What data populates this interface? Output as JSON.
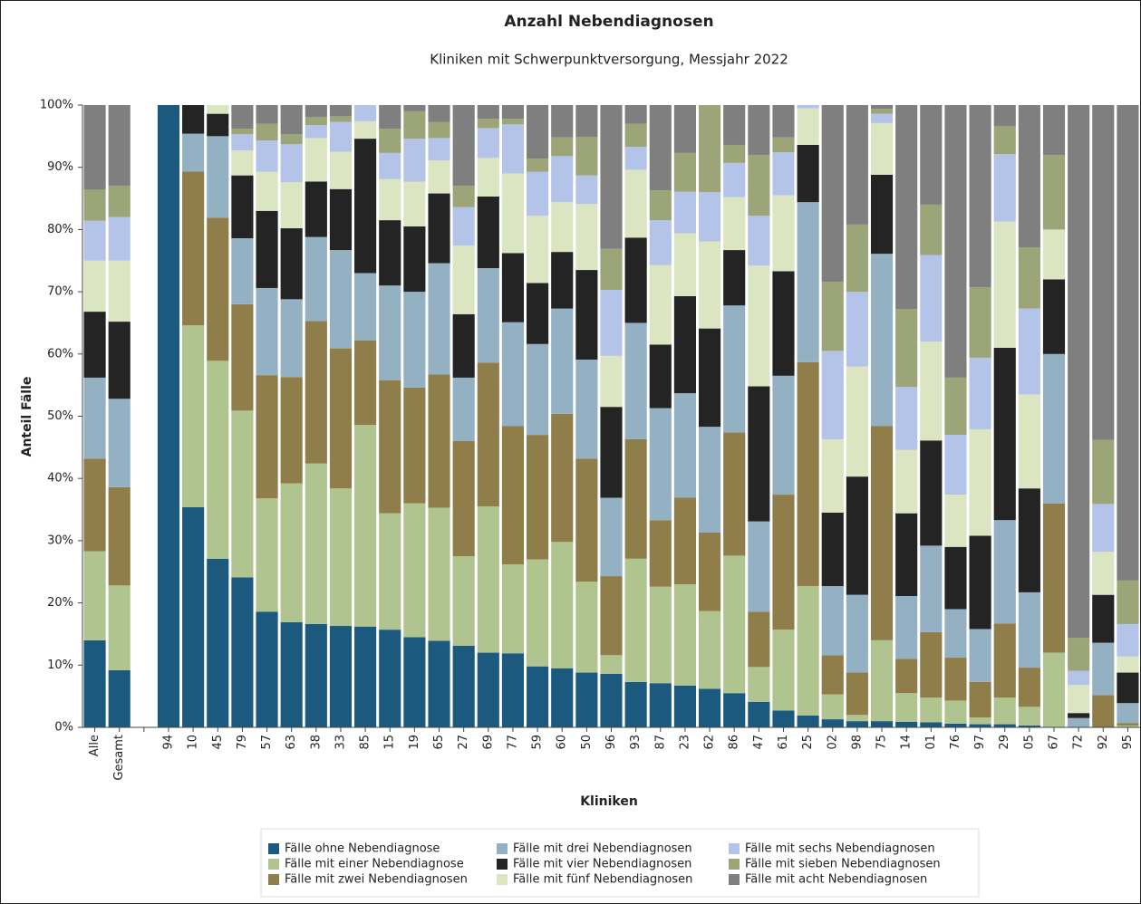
{
  "chart_data": {
    "type": "stacked_bar",
    "title": "Anzahl Nebendiagnosen",
    "subtitle": "Kliniken mit Schwerpunktversorgung, Messjahr 2022",
    "y_label": "Anteil Fälle",
    "x_label": "Kliniken",
    "categories": [
      "Alle",
      "Gesamt",
      null,
      "94",
      "10",
      "45",
      "79",
      "57",
      "63",
      "38",
      "33",
      "85",
      "15",
      "19",
      "65",
      "27",
      "69",
      "77",
      "59",
      "60",
      "50",
      "96",
      "93",
      "87",
      "23",
      "62",
      "86",
      "47",
      "61",
      "25",
      "02",
      "98",
      "75",
      "14",
      "01",
      "76",
      "97",
      "29",
      "05",
      "67",
      "72",
      "92",
      "95"
    ],
    "series": [
      {
        "name": "Fälle ohne Nebendiagnose",
        "color": "#1b5a7e",
        "values": [
          14,
          9.2,
          null,
          100,
          35.4,
          27.1,
          24.1,
          18.6,
          16.9,
          16.6,
          16.3,
          16.2,
          15.7,
          14.5,
          13.9,
          13.1,
          12,
          11.9,
          9.8,
          9.5,
          8.8,
          8.6,
          7.3,
          7.1,
          6.7,
          6.2,
          5.5,
          4.1,
          2.7,
          1.9,
          1.3,
          1,
          1,
          0.9,
          0.8,
          0.6,
          0.5,
          0.5,
          0.3,
          0,
          0,
          0,
          0
        ]
      },
      {
        "name": "Fälle mit einer Nebendiagnose",
        "color": "#b0c48f",
        "values": [
          14.3,
          13.6,
          null,
          0,
          29.2,
          31.8,
          26.8,
          18.2,
          22.3,
          25.8,
          22.1,
          32.4,
          18.7,
          21.5,
          21.4,
          14.4,
          23.5,
          14.3,
          17.2,
          20.3,
          14.6,
          3,
          19.8,
          15.5,
          16.3,
          12.5,
          22.1,
          5.6,
          13,
          20.8,
          4,
          1,
          13,
          4.6,
          4,
          3.7,
          1.1,
          4.3,
          3,
          12,
          0,
          0,
          0.3
        ]
      },
      {
        "name": "Fälle mit zwei Nebendiagnosen",
        "color": "#8f7e49",
        "values": [
          14.9,
          15.8,
          null,
          0,
          24.7,
          23,
          17.1,
          19.8,
          17.1,
          22.9,
          22.5,
          13.6,
          21.4,
          18.6,
          21.4,
          18.5,
          23.1,
          22.2,
          20,
          20.6,
          19.8,
          12.7,
          19.2,
          10.7,
          13.9,
          12.6,
          19.8,
          8.9,
          21.7,
          36,
          6.3,
          6.8,
          34.4,
          5.5,
          10.5,
          6.9,
          5.7,
          11.9,
          6.3,
          24,
          0,
          5.2,
          0.4
        ]
      },
      {
        "name": "Fälle mit drei Nebendiagnosen",
        "color": "#94b1c4",
        "values": [
          13,
          14.2,
          null,
          0,
          6.1,
          13.1,
          10.6,
          14,
          12.5,
          13.5,
          15.8,
          10.8,
          15.2,
          15.4,
          17.9,
          10.2,
          15.2,
          16.7,
          14.6,
          16.9,
          15.9,
          12.6,
          18.7,
          18,
          16.8,
          17,
          20.4,
          14.5,
          19.1,
          25.7,
          11.1,
          12.5,
          27.7,
          10.1,
          13.9,
          7.8,
          8.5,
          16.6,
          12.1,
          24,
          1.5,
          8.4,
          3.2
        ]
      },
      {
        "name": "Fälle mit vier Nebendiagnosen",
        "color": "#242424",
        "values": [
          10.6,
          12.4,
          null,
          0,
          4.6,
          3.6,
          10.1,
          12.4,
          11.4,
          8.9,
          9.8,
          21.6,
          10.5,
          10.5,
          11.2,
          10.2,
          11.5,
          11.1,
          9.8,
          9.1,
          14.4,
          14.6,
          13.7,
          10.2,
          15.6,
          15.8,
          8.9,
          21.7,
          16.8,
          9.2,
          11.8,
          19,
          12.7,
          13.3,
          16.9,
          10,
          15,
          27.7,
          16.7,
          12,
          0.8,
          7.7,
          4.9
        ]
      },
      {
        "name": "Fälle mit fünf Nebendiagnosen",
        "color": "#dbe5c1",
        "values": [
          8.2,
          9.8,
          null,
          0,
          0,
          1.4,
          4,
          6.3,
          7.4,
          7,
          6,
          2.8,
          6.6,
          7.2,
          5.3,
          11,
          6.2,
          12.8,
          10.8,
          8,
          10.6,
          8.2,
          10.9,
          12.8,
          10.1,
          14,
          8.5,
          19.4,
          12.2,
          5.9,
          11.8,
          17.7,
          8.3,
          10.2,
          15.9,
          8.4,
          17.1,
          20.3,
          15.1,
          8,
          4.5,
          6.9,
          2.6
        ]
      },
      {
        "name": "Fälle mit sechs Nebendiagnosen",
        "color": "#b4c3e8",
        "values": [
          6.4,
          7,
          null,
          0,
          0,
          0,
          2.6,
          5,
          6.1,
          2.1,
          4.8,
          2.6,
          4.2,
          6.9,
          3.6,
          6.2,
          4.8,
          7.9,
          7.1,
          7.4,
          4.6,
          10.6,
          3.7,
          7.2,
          6.7,
          7.9,
          5.5,
          8,
          6.9,
          0.5,
          14.2,
          12,
          1.5,
          10.1,
          13.9,
          9.6,
          11.5,
          10.8,
          13.8,
          0,
          2.3,
          7.7,
          5.2
        ]
      },
      {
        "name": "Fälle mit sieben Nebendiagnosen",
        "color": "#9ba577",
        "values": [
          5,
          5,
          null,
          0,
          0,
          0,
          0.9,
          2.7,
          1.6,
          1.3,
          0.9,
          0,
          3.9,
          4.4,
          2.6,
          3.4,
          1.5,
          0.9,
          2.1,
          3,
          6.2,
          6.6,
          3.7,
          4.8,
          6.2,
          14,
          2.9,
          9.8,
          2.4,
          0,
          11.1,
          10.8,
          0.8,
          12.5,
          8.1,
          9.2,
          11.3,
          4.5,
          9.8,
          12,
          5.3,
          10.3,
          7
        ]
      },
      {
        "name": "Fälle mit acht Nebendiagnosen",
        "color": "#7f7f7f",
        "values": [
          13.6,
          13,
          null,
          0,
          0,
          0,
          3.8,
          3,
          4.7,
          1.9,
          1.8,
          0,
          3.8,
          1,
          2.7,
          13,
          2.2,
          2.2,
          8.6,
          5.2,
          5.1,
          23.1,
          3,
          13.7,
          7.7,
          0,
          6.4,
          8,
          5.2,
          0,
          28.4,
          19.2,
          0.6,
          32.8,
          16,
          43.8,
          29.3,
          3.4,
          22.9,
          8,
          85.6,
          53.8,
          76.4
        ]
      }
    ],
    "ylim": [
      0,
      100
    ],
    "yticks": [
      {
        "value": 0,
        "label": "0%"
      },
      {
        "value": 10,
        "label": "10%"
      },
      {
        "value": 20,
        "label": "20%"
      },
      {
        "value": 30,
        "label": "30%"
      },
      {
        "value": 40,
        "label": "40%"
      },
      {
        "value": 50,
        "label": "50%"
      },
      {
        "value": 60,
        "label": "60%"
      },
      {
        "value": 70,
        "label": "70%"
      },
      {
        "value": 80,
        "label": "80%"
      },
      {
        "value": 90,
        "label": "90%"
      },
      {
        "value": 100,
        "label": "100%"
      }
    ],
    "grid": false,
    "legend": "bottom"
  }
}
